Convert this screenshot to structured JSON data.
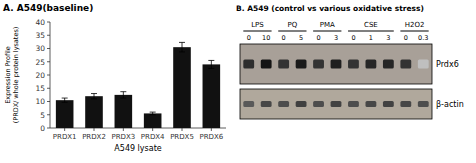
{
  "chart_data": [
    {
      "type": "bar",
      "title": "A.  A549(baseline)",
      "categories": [
        "PRDX1",
        "PRDX2",
        "PRDX3",
        "PRDX4",
        "PRDX5",
        "PRDX6"
      ],
      "values": [
        10.5,
        12.0,
        12.5,
        5.5,
        30.5,
        24.0
      ],
      "errors": [
        0.8,
        1.0,
        1.2,
        0.5,
        1.8,
        1.5
      ],
      "color": "#111111",
      "xlabel": "A549 lysate",
      "ylabel": "Expression Profile\n(PRDX/ whole protein lysates)",
      "ylim": [
        0,
        40
      ],
      "yticks": [
        0,
        5,
        10,
        15,
        20,
        25,
        30,
        35,
        40
      ]
    },
    {
      "type": "blot",
      "title": "B.  A549 (control vs various oxidative stress)",
      "groups": [
        "LPS",
        "PQ",
        "PMA",
        "CSE",
        "H2O2"
      ],
      "doses": [
        [
          "0",
          "10"
        ],
        [
          "0",
          "5"
        ],
        [
          "0",
          "3"
        ],
        [
          "0",
          "1",
          "3"
        ],
        [
          "0",
          "0.3"
        ]
      ],
      "series": [
        {
          "name": "Prdx6",
          "values": [
            0.18,
            0.08,
            0.2,
            0.1,
            0.2,
            0.12,
            0.2,
            0.15,
            0.15,
            0.2,
            0.75
          ]
        },
        {
          "name": "β-actin",
          "values": [
            0.35,
            0.28,
            0.3,
            0.25,
            0.3,
            0.26,
            0.3,
            0.28,
            0.26,
            0.28,
            0.3
          ]
        }
      ]
    }
  ]
}
